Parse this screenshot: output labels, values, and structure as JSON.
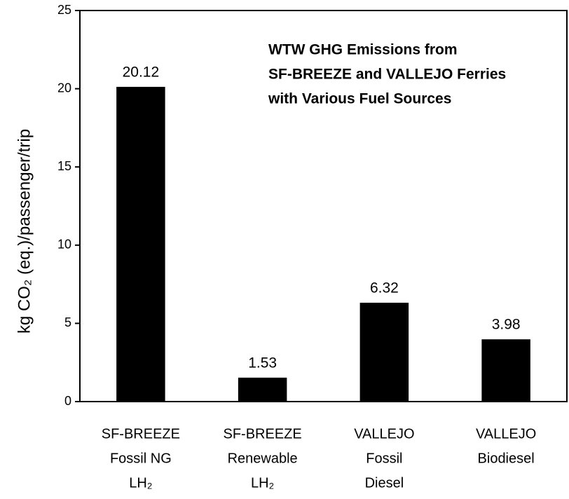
{
  "chart_data": {
    "type": "bar",
    "title": [
      "WTW GHG Emissions from",
      "SF-BREEZE and VALLEJO Ferries",
      "with Various Fuel Sources"
    ],
    "y_label": "kg CO₂ (eq.)/passenger/trip",
    "categories": [
      [
        "SF-BREEZE",
        "Fossil NG",
        "LH₂"
      ],
      [
        "SF-BREEZE",
        "Renewable",
        "LH₂"
      ],
      [
        "VALLEJO",
        "Fossil",
        "Diesel"
      ],
      [
        "VALLEJO",
        "Biodiesel"
      ]
    ],
    "values": [
      20.12,
      1.53,
      6.32,
      3.98
    ],
    "color": "#000000",
    "ylim": [
      0,
      25
    ],
    "yticks": [
      0,
      5,
      10,
      15,
      20,
      25
    ],
    "grid": false
  }
}
